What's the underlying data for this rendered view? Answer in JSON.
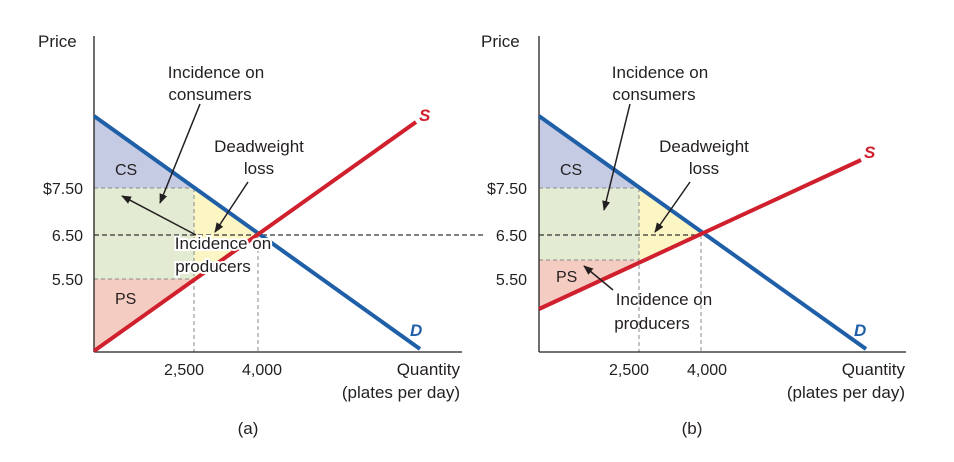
{
  "colors": {
    "demand": "#1f5fa8",
    "supply": "#d0202e",
    "consumer_surplus": "#c5cbe3",
    "producer_surplus": "#f5ccc2",
    "tax_revenue": "#e3ecd2",
    "deadweight_loss": "#fbf6c4"
  },
  "panels": [
    {
      "caption": "(a)",
      "y_axis_label": "Price",
      "x_axis_label_line1": "Quantity",
      "x_axis_label_line2": "(plates per day)",
      "y_ticks": [
        "$7.50",
        "6.50",
        "5.50"
      ],
      "x_ticks": [
        "2,500",
        "4,000"
      ],
      "supply_label": "S",
      "demand_label": "D",
      "cs_label": "CS",
      "ps_label": "PS",
      "consumer_incidence_line1": "Incidence on",
      "consumer_incidence_line2": "consumers",
      "deadweight_line1": "Deadweight",
      "deadweight_line2": "loss",
      "producer_incidence_line1": "Incidence on",
      "producer_incidence_line2": "producers"
    },
    {
      "caption": "(b)",
      "y_axis_label": "Price",
      "x_axis_label_line1": "Quantity",
      "x_axis_label_line2": "(plates per day)",
      "y_ticks": [
        "$7.50",
        "6.50",
        "5.50"
      ],
      "x_ticks": [
        "2,500",
        "4,000"
      ],
      "supply_label": "S",
      "demand_label": "D",
      "cs_label": "CS",
      "ps_label": "PS",
      "consumer_incidence_line1": "Incidence on",
      "consumer_incidence_line2": "consumers",
      "deadweight_line1": "Deadweight",
      "deadweight_line2": "loss",
      "producer_incidence_line1": "Incidence on",
      "producer_incidence_line2": "producers"
    }
  ]
}
